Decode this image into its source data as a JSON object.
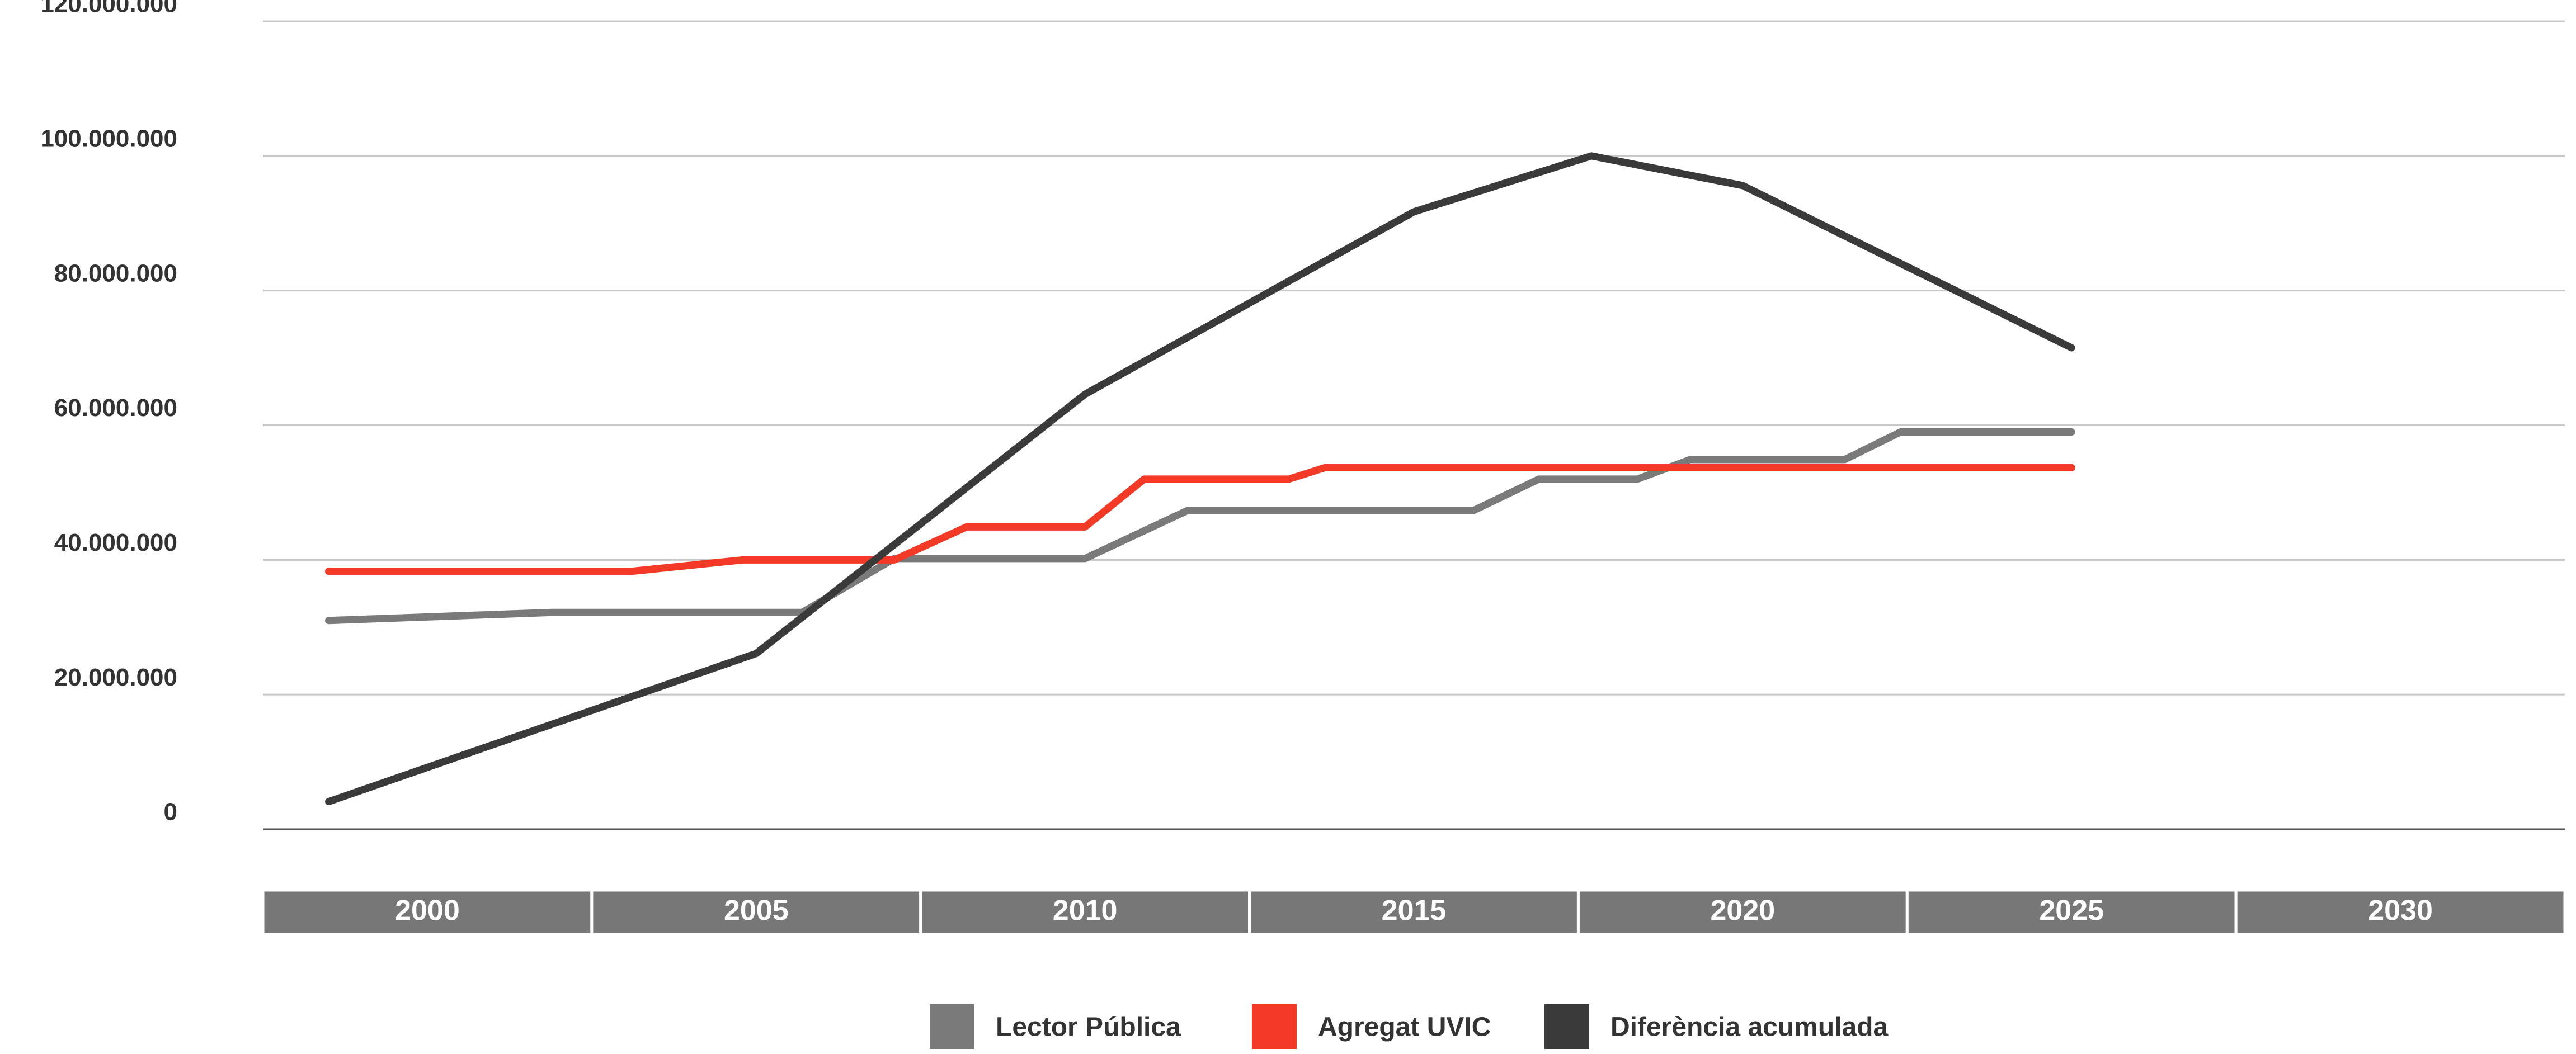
{
  "chart_data": {
    "type": "line",
    "xlim": [
      1997.5,
      2032.5
    ],
    "xticks": [
      2000,
      2005,
      2010,
      2015,
      2020,
      2025,
      2030
    ],
    "ylim": [
      0,
      120000000
    ],
    "yticks": [
      0,
      {
        "value": 20000000,
        "label": "20.000.000"
      },
      {
        "value": 40000000,
        "label": "40.000.000"
      },
      {
        "value": 60000000,
        "label": "60.000.000"
      },
      {
        "value": 80000000,
        "label": "80.000.000"
      },
      {
        "value": 100000000,
        "label": "100.000.000"
      },
      {
        "value": 120000000,
        "label": "120.000.000"
      }
    ],
    "grid": true,
    "legend": "bottom",
    "series": [
      {
        "name": "Lector Pública",
        "color": "#7a7a7a",
        "x": [
          1998.5,
          2001.9,
          2005.7,
          2007.1,
          2010,
          2011.55,
          2015.9,
          2016.9,
          2018.4,
          2019.2,
          2021.55,
          2022.4,
          2025
        ],
        "values": [
          31000000,
          32200000,
          32200000,
          40200000,
          40200000,
          47300000,
          47300000,
          52000000,
          52000000,
          54900000,
          54900000,
          59000000,
          59000000
        ]
      },
      {
        "name": "Agregat UVIC",
        "color": "#f23a26",
        "x": [
          1998.5,
          2003.1,
          2004.8,
          2007.1,
          2008.2,
          2010,
          2010.9,
          2013.1,
          2013.65,
          2025
        ],
        "values": [
          38300000,
          38300000,
          40000000,
          40000000,
          44900000,
          44900000,
          52000000,
          52000000,
          53700000,
          53700000
        ]
      },
      {
        "name": "Diferència acumulada",
        "color": "#3a3a3a",
        "x": [
          1998.5,
          2005,
          2010,
          2015,
          2017.7,
          2020,
          2025
        ],
        "values": [
          4100000,
          26100000,
          64600000,
          91700000,
          100000000,
          95600000,
          71500000
        ]
      }
    ]
  }
}
